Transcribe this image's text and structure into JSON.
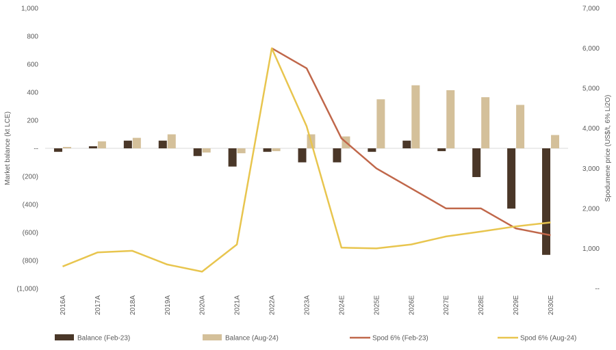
{
  "chart_data": {
    "type": "bar+line",
    "categories": [
      "2016A",
      "2017A",
      "2018A",
      "2019A",
      "2020A",
      "2021A",
      "2022A",
      "2023A",
      "2024E",
      "2025E",
      "2026E",
      "2027E",
      "2028E",
      "2029E",
      "2030E"
    ],
    "bar_series": [
      {
        "name": "Balance (Feb-23)",
        "color": "#4a3728",
        "values": [
          -25,
          15,
          55,
          55,
          -55,
          -130,
          -25,
          -100,
          -100,
          -25,
          55,
          -20,
          -205,
          -430,
          -760
        ]
      },
      {
        "name": "Balance (Aug-24)",
        "color": "#d4c09a",
        "values": [
          10,
          50,
          75,
          100,
          -30,
          -35,
          -20,
          100,
          85,
          350,
          450,
          415,
          365,
          310,
          95
        ]
      }
    ],
    "line_series": [
      {
        "name": "Spod 6% (Feb-23)",
        "color": "#c0674a",
        "start_index": 6,
        "values": [
          6000,
          5500,
          3750,
          3000,
          2500,
          2000,
          2000,
          1500,
          1330
        ]
      },
      {
        "name": "Spod 6% (Aug-24)",
        "color": "#e8c54e",
        "start_index": 0,
        "values": [
          550,
          900,
          940,
          600,
          420,
          1100,
          6000,
          4050,
          1020,
          1000,
          1100,
          1300,
          1420,
          1550,
          1650
        ]
      }
    ],
    "ylabel": "Market balance (kt LCE)",
    "ylim": [
      -1000,
      1000
    ],
    "y_ticks": [
      "(1,000)",
      "(800)",
      "(600)",
      "(400)",
      "(200)",
      "--",
      "200",
      "400",
      "600",
      "800",
      "1,000"
    ],
    "y2label": "Spodumene price (US$/t, 6% Li2O)",
    "y2lim": [
      0,
      7000
    ],
    "y2_ticks": [
      "--",
      "1,000",
      "2,000",
      "3,000",
      "4,000",
      "5,000",
      "6,000",
      "7,000"
    ],
    "grid": false,
    "legend_position": "bottom"
  }
}
